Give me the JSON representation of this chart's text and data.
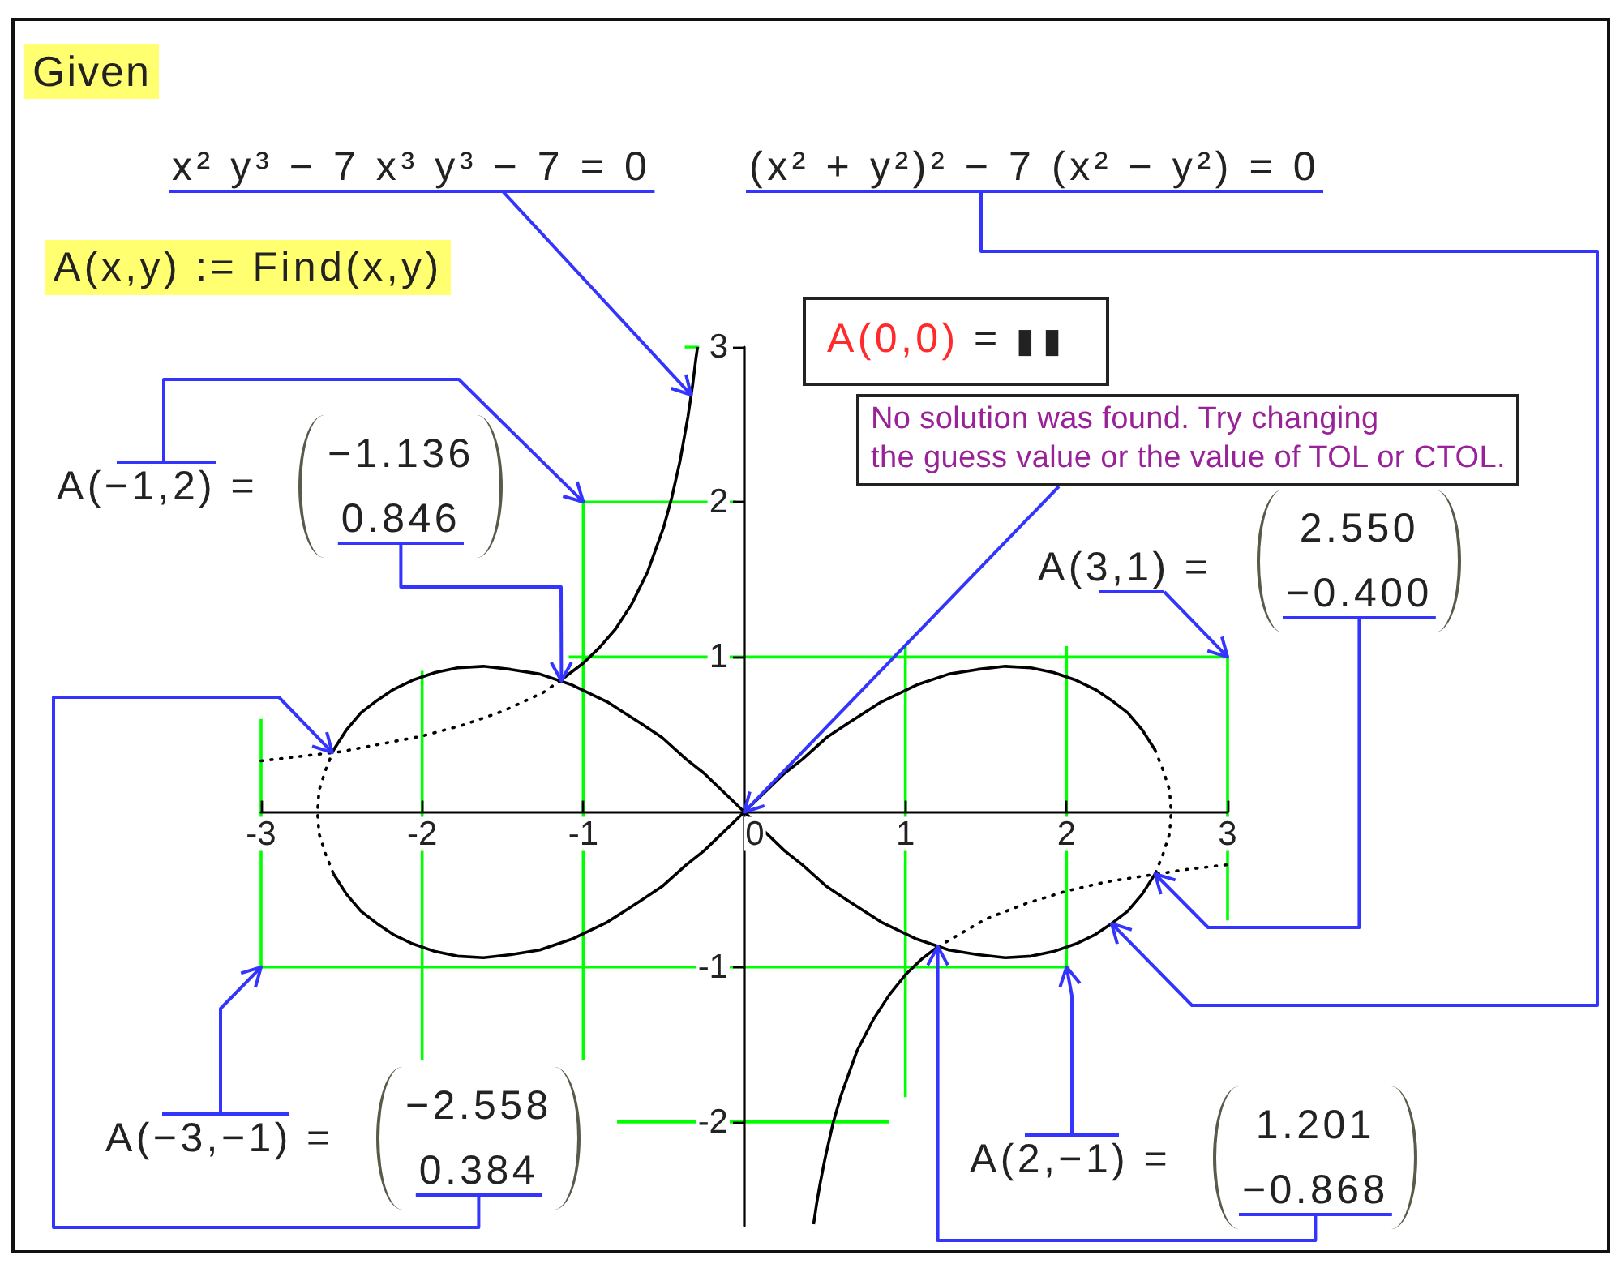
{
  "chart_data": {
    "type": "line",
    "annotations": [
      "Given",
      {
        "text": "x² y³ − 7 x³ y³ − 7 = 0",
        "x": -0.33,
        "y": 2.69
      },
      {
        "text": "(x² + y²)² − 7 (x² − y²) = 0",
        "x": 2.28,
        "y": -0.72
      },
      "A(x,y) := Find(x,y)",
      "A(0,0) = ▮▮",
      {
        "text": "No solution was found. Try changing\nthe guess value or the value of TOL or CTOL.",
        "x": 0,
        "y": 0
      },
      {
        "text": "A(−1,2) =",
        "x": -1,
        "y": 2
      },
      {
        "text": "−1.136\n0.846",
        "x": -1.136,
        "y": 0.846
      },
      {
        "text": "A(3,1) =",
        "x": 3,
        "y": 1
      },
      {
        "text": "2.550\n−0.400",
        "x": 2.55,
        "y": -0.4
      },
      {
        "text": "A(−3,−1) =",
        "x": -3,
        "y": -1
      },
      {
        "text": "−2.558\n0.384",
        "x": -2.558,
        "y": 0.384
      },
      {
        "text": "A(2,−1) =",
        "x": 2,
        "y": -1
      },
      {
        "text": "1.201\n−0.868",
        "x": 1.201,
        "y": -0.868
      }
    ],
    "series": [
      {
        "color": "#00ff00",
        "line_style": "solid",
        "x": [
          -1.03,
          -0.05,
          null,
          -0.37,
          -0.28,
          null,
          -3,
          -3,
          null,
          -2,
          -2,
          null,
          -1,
          -1,
          null,
          -1.09,
          3,
          null,
          1,
          1,
          null,
          2,
          2,
          null,
          3,
          3,
          null,
          -3,
          2.02,
          null,
          -0.79,
          0.9
        ],
        "values": [
          2,
          2,
          null,
          3,
          3,
          null,
          0.6,
          -1,
          null,
          0.91,
          -1.6,
          null,
          2,
          -1.6,
          null,
          1,
          1,
          null,
          1.08,
          -1.84,
          null,
          1.07,
          -1.03,
          null,
          1,
          -0.7,
          null,
          -1,
          -1,
          null,
          -2,
          -2
        ]
      },
      {
        "color": "#000000",
        "line_style": "solid",
        "x": [
          -2.55,
          -2.47,
          -2.38,
          -2.28,
          -2.18,
          -2.06,
          -1.92,
          -1.78,
          -1.62,
          -1.45,
          -1.27,
          -1.07,
          -0.85,
          -0.64,
          -0.51,
          -0.36,
          -0.25,
          0,
          0.25,
          0.36,
          0.51,
          0.64,
          0.85,
          1.07,
          1.27,
          1.45,
          1.62,
          1.78,
          1.92,
          2.06,
          2.18,
          2.28,
          2.38,
          2.47,
          2.55
        ],
        "values": [
          0.4,
          0.53,
          0.64,
          0.72,
          0.79,
          0.85,
          0.9,
          0.93,
          0.94,
          0.92,
          0.89,
          0.82,
          0.71,
          0.57,
          0.48,
          0.34,
          0.25,
          0,
          -0.25,
          -0.34,
          -0.48,
          -0.57,
          -0.71,
          -0.82,
          -0.89,
          -0.92,
          -0.94,
          -0.93,
          -0.9,
          -0.85,
          -0.79,
          -0.72,
          -0.64,
          -0.53,
          -0.4
        ]
      },
      {
        "color": "#000000",
        "line_style": "solid",
        "x": [
          -2.55,
          -2.47,
          -2.38,
          -2.28,
          -2.18,
          -2.06,
          -1.92,
          -1.78,
          -1.62,
          -1.45,
          -1.27,
          -1.07,
          -0.85,
          -0.64,
          -0.51,
          -0.36,
          -0.25,
          0,
          0.25,
          0.36,
          0.51,
          0.64,
          0.85,
          1.07,
          1.27,
          1.45,
          1.62,
          1.78,
          1.92,
          2.06,
          2.18,
          2.28,
          2.38,
          2.47,
          2.55
        ],
        "values": [
          -0.4,
          -0.53,
          -0.64,
          -0.72,
          -0.79,
          -0.85,
          -0.9,
          -0.93,
          -0.94,
          -0.92,
          -0.89,
          -0.82,
          -0.71,
          -0.57,
          -0.48,
          -0.34,
          -0.25,
          0,
          0.25,
          0.34,
          0.48,
          0.57,
          0.71,
          0.82,
          0.89,
          0.92,
          0.94,
          0.93,
          0.9,
          0.85,
          0.79,
          0.72,
          0.64,
          0.53,
          0.4
        ]
      },
      {
        "color": "#000000",
        "line_style": "dotted",
        "x": [
          -2.55,
          -2.6,
          -2.64,
          -2.65,
          -2.64,
          -2.6,
          -2.55
        ],
        "values": [
          0.4,
          0.27,
          0.14,
          0,
          -0.14,
          -0.27,
          -0.4
        ]
      },
      {
        "color": "#000000",
        "line_style": "dotted",
        "x": [
          2.55,
          2.6,
          2.64,
          2.65,
          2.64,
          2.6,
          2.55
        ],
        "values": [
          0.4,
          0.27,
          0.14,
          0,
          -0.14,
          -0.27,
          -0.4
        ]
      },
      {
        "color": "#000000",
        "line_style": "dotted",
        "x": [
          -3,
          -2.75,
          -2.5,
          -2.25,
          -2,
          -1.75,
          -1.5,
          -1.25,
          -1.14
        ],
        "values": [
          0.33,
          0.36,
          0.39,
          0.44,
          0.49,
          0.56,
          0.65,
          0.77,
          0.85
        ]
      },
      {
        "color": "#000000",
        "line_style": "solid",
        "x": [
          -1.14,
          -1,
          -0.9,
          -0.8,
          -0.7,
          -0.6,
          -0.5,
          -0.45,
          -0.4,
          -0.35,
          -0.32,
          -0.3,
          -0.29
        ],
        "values": [
          0.85,
          0.96,
          1.06,
          1.18,
          1.34,
          1.55,
          1.84,
          2.03,
          2.26,
          2.55,
          2.76,
          2.93,
          3
        ]
      },
      {
        "color": "#000000",
        "line_style": "solid",
        "x": [
          0.43,
          0.45,
          0.47,
          0.5,
          0.55,
          0.6,
          0.7,
          0.8,
          0.9,
          1,
          1.1,
          1.2
        ],
        "values": [
          -2.66,
          -2.52,
          -2.4,
          -2.24,
          -2.01,
          -1.83,
          -1.54,
          -1.34,
          -1.18,
          -1.05,
          -0.95,
          -0.87
        ]
      },
      {
        "color": "#000000",
        "line_style": "dotted",
        "x": [
          1.2,
          1.5,
          1.75,
          2,
          2.25,
          2.5,
          2.75,
          3
        ],
        "values": [
          -0.87,
          -0.69,
          -0.59,
          -0.51,
          -0.45,
          -0.41,
          -0.37,
          -0.34
        ]
      }
    ],
    "xlim": [
      -3,
      3
    ],
    "xticks": [
      -3,
      -2,
      -1,
      0,
      1,
      2,
      3
    ],
    "ylim": [
      -2.67,
      3
    ],
    "yticks": [
      -2,
      -1,
      1,
      2,
      3
    ],
    "grid": false,
    "marker": "none"
  }
}
